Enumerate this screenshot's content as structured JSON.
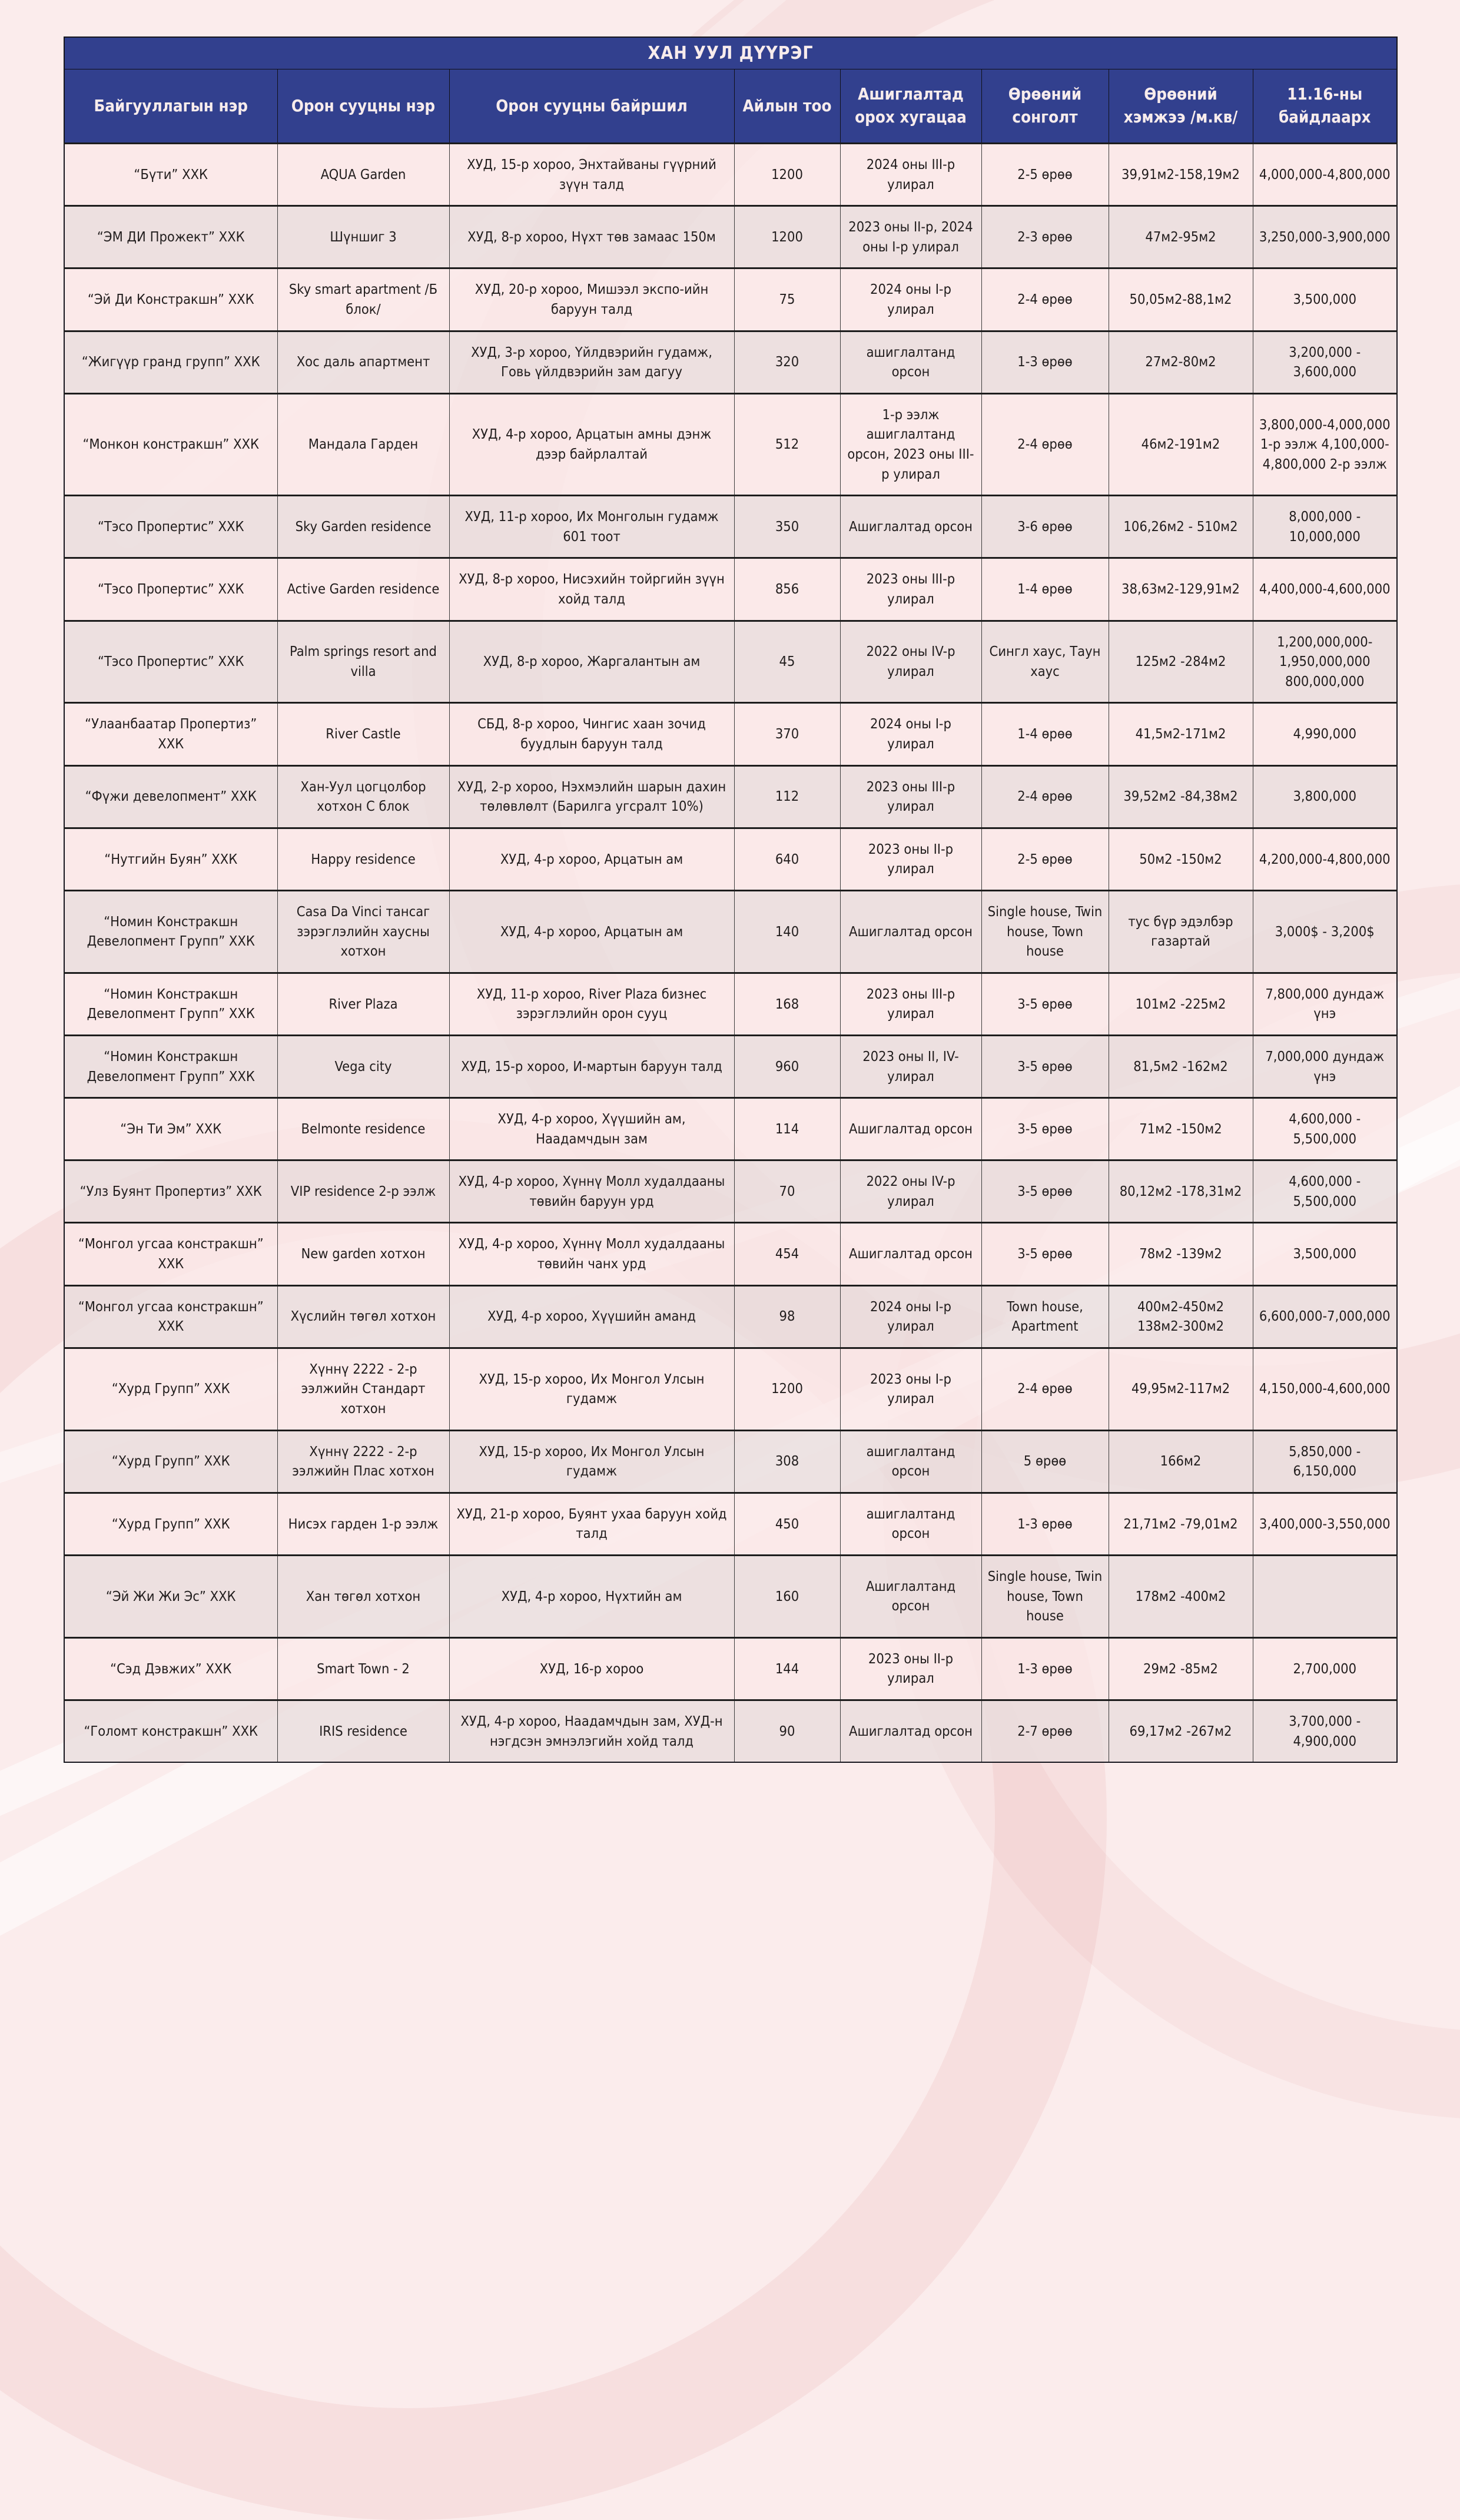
{
  "title": "ХАН УУЛ ДҮҮРЭГ",
  "colors": {
    "header_bg": "#32408e",
    "header_text": "#f8ecec",
    "row_pink": "#fae8e8",
    "row_gray": "#e9dddd",
    "page_bg": "#fbecec",
    "border": "#1d1d1d"
  },
  "column_keys": [
    "org",
    "name",
    "location",
    "units",
    "timeline",
    "rooms",
    "size",
    "price"
  ],
  "columns": [
    "Байгууллагын нэр",
    "Орон сууцны нэр",
    "Орон сууцны байршил",
    "Айлын тоо",
    "Ашиглалтад орох хугацаа",
    "Өрөөний сонголт",
    "Өрөөний хэмжээ /м.кв/",
    "11.16-ны байдлаарх"
  ],
  "rows": [
    [
      "“Бүти” ХХК",
      "AQUA Garden",
      "ХУД, 15-р хороо, Энхтайваны гүүрний зүүн талд",
      "1200",
      "2024 оны III-р улирал",
      "2-5 өрөө",
      "39,91м2-158,19м2",
      "4,000,000-4,800,000"
    ],
    [
      "“ЭМ ДИ Прожект” ХХК",
      "Шүншиг 3",
      "ХУД, 8-р хороо, Нүхт төв замаас 150м",
      "1200",
      "2023 оны II-р, 2024 оны I-р улирал",
      "2-3 өрөө",
      "47м2-95м2",
      "3,250,000-3,900,000"
    ],
    [
      "“Эй Ди Констракшн” ХХК",
      "Sky smart apart­ment /Б блок/",
      "ХУД, 20-р хороо, Мишээл экспо-ийн баруун талд",
      "75",
      "2024 оны I-р улирал",
      "2-4 өрөө",
      "50,05м2-88,1м2",
      "3,500,000"
    ],
    [
      "“Жигүүр гранд групп” ХХК",
      "Хос даль апартмент",
      "ХУД, 3-р хороо, Үйлдвэрийн гудамж, Говь үйлдвэрийн зам дагуу",
      "320",
      "ашиглалтанд орсон",
      "1-3 өрөө",
      "27м2-80м2",
      "3,200,000 - 3,600,000"
    ],
    [
      "“Монкон констракшн” ХХК",
      "Мандала Гарден",
      "ХУД, 4-р хороо, Арцатын амны дэнж дээр байрлалтай",
      "512",
      "1-р ээлж ашиглалтанд орсон, 2023 оны III-р улирал",
      "2-4 өрөө",
      "46м2-191м2",
      "3,800,000-4,000,000 1-р ээлж 4,100,000-4,800,000 2-р ээлж"
    ],
    [
      "“Тэсо Пропертис” ХХК",
      "Sky Garden resi­dence",
      "ХУД, 11-р хороо, Их Монголын гудамж 601 тоот",
      "350",
      "Ашиглалтад орсон",
      "3-6 өрөө",
      "106,26м2 - 510м2",
      "8,000,000 - 10,000,000"
    ],
    [
      "“Тэсо Пропертис” ХХК",
      "Active Garden residence",
      "ХУД, 8-р хороо, Нисэхийн тойргийн зүүн хойд талд",
      "856",
      "2023 оны III-р улирал",
      "1-4 өрөө",
      "38,63м2-129,91м2",
      "4,400,000-4,600,000"
    ],
    [
      "“Тэсо Пропертис” ХХК",
      "Palm springs resort and villa",
      "ХУД, 8-р хороо, Жаргалантын ам",
      "45",
      "2022 оны IV-р улирал",
      "Сингл хаус, Таун хаус",
      "125м2 -284м2",
      "1,200,000,000-1,950,000,000 800,000,000"
    ],
    [
      "“Улаанбаатар Пропертиз” ХХК",
      "River Castle",
      "СБД, 8-р хороо, Чингис хаан зочид буудлын баруун талд",
      "370",
      "2024 оны I-р улирал",
      "1-4 өрөө",
      "41,5м2-171м2",
      "4,990,000"
    ],
    [
      "“Фүжи девелопмент” ХХК",
      "Хан-Уул цогцолбор хотхон С блок",
      "ХУД, 2-р хороо, Нэхмэлийн шарын дахин төлөвлөлт (Барилга угсралт 10%)",
      "112",
      "2023 оны III-р улирал",
      "2-4 өрөө",
      "39,52м2 -84,38м2",
      "3,800,000"
    ],
    [
      "“Нутгийн Буян” ХХК",
      "Happy residence",
      "ХУД, 4-р хороо, Арцатын ам",
      "640",
      "2023 оны II-р улирал",
      "2-5 өрөө",
      "50м2 -150м2",
      "4,200,000-4,800,000"
    ],
    [
      "“Номин Констракшн Девелопмент Групп” ХХК",
      "Casa Da Vin­ci тансаг зэрэглэлийн хаусны хотхон",
      "ХУД, 4-р хороо, Арцатын ам",
      "140",
      "Ашиглалтад орсон",
      "Single house, Twin house, Town house",
      "тус бүр эдэлбэр газартай",
      "3,000$ - 3,200$"
    ],
    [
      "“Номин Констракшн Девелопмент Групп” ХХК",
      "River Plaza",
      "ХУД, 11-р хороо, River Plaza бизнес зэрэглэлийн орон сууц",
      "168",
      "2023 оны III-р улирал",
      "3-5 өрөө",
      "101м2 -225м2",
      "7,800,000 дундаж үнэ"
    ],
    [
      "“Номин Констракшн Девелопмент Групп” ХХК",
      "Vega city",
      "ХУД, 15-р хороо, И-мартын баруун талд",
      "960",
      "2023 оны II, IV-улирал",
      "3-5 өрөө",
      "81,5м2 -162м2",
      "7,000,000 дундаж үнэ"
    ],
    [
      "“Эн Ти Эм” ХХК",
      "Belmonte residence",
      "ХУД, 4-р хороо, Хүүшийн ам, Наадамчдын зам",
      "114",
      "Ашиглалтад орсон",
      "3-5 өрөө",
      "71м2 -150м2",
      "4,600,000 - 5,500,000"
    ],
    [
      "“Улз Буянт Пропертиз” ХХК",
      "VIP residence 2-р ээлж",
      "ХУД, 4-р хороо, Хүннү Молл худалдааны төвийн баруун урд",
      "70",
      "2022 оны IV-р улирал",
      "3-5 өрөө",
      "80,12м2 -178,31м2",
      "4,600,000 - 5,500,000"
    ],
    [
      "“Монгол угсаа констракшн” ХХК",
      "New garden хотхон",
      "ХУД, 4-р хороо, Хүннү Молл худалдааны төвийн чанх урд",
      "454",
      "Ашиглалтад орсон",
      "3-5 өрөө",
      "78м2 -139м2",
      "3,500,000"
    ],
    [
      "“Монгол угсаа констракшн” ХХК",
      "Хүслийн төгөл хотхон",
      "ХУД, 4-р хороо, Хүүшийн аманд",
      "98",
      "2024 оны I-р улирал",
      "Town house, Apartment",
      "400м2-450м2 138м2-300м2",
      "6,600,000-7,000,000"
    ],
    [
      "“Хурд Групп” ХХК",
      "Хүннү 2222 - 2-р ээлжийн Стандарт хотхон",
      "ХУД, 15-р хороо, Их Монгол Улсын гудамж",
      "1200",
      "2023 оны I-р улирал",
      "2-4 өрөө",
      "49,95м2-117м2",
      "4,150,000-4,600,000"
    ],
    [
      "“Хурд Групп” ХХК",
      "Хүннү 2222 - 2-р ээлжийн Плас хотхон",
      "ХУД, 15-р хороо, Их Монгол Улсын гудамж",
      "308",
      "ашиглалтанд орсон",
      "5 өрөө",
      "166м2",
      "5,850,000 - 6,150,000"
    ],
    [
      "“Хурд Групп” ХХК",
      "Нисэх гарден 1-р ээлж",
      "ХУД, 21-р хороо, Буянт ухаа баруун хойд талд",
      "450",
      "ашиглалтанд орсон",
      "1-3 өрөө",
      "21,71м2 -79,01м2",
      "3,400,000-3,550,000"
    ],
    [
      "“Эй Жи Жи Эс” ХХК",
      "Хан төгөл хотхон",
      "ХУД, 4-р хороо, Нүхтийн ам",
      "160",
      "Ашиглалтанд орсон",
      "Single house, Twin house, Town house",
      "178м2 -400м2",
      ""
    ],
    [
      "“Сэд Дэвжих” ХХК",
      "Smart Town - 2",
      "ХУД, 16-р хороо",
      "144",
      "2023 оны II-р улирал",
      "1-3 өрөө",
      "29м2 -85м2",
      "2,700,000"
    ],
    [
      "“Голомт констракшн” ХХК",
      "IRIS residence",
      "ХУД, 4-р хороо, Наадамчдын зам, ХУД-н нэгдсэн эмнэлэгийн хойд талд",
      "90",
      "Ашиглалтад орсон",
      "2-7 өрөө",
      "69,17м2 -267м2",
      "3,700,000 - 4,900,000"
    ]
  ]
}
